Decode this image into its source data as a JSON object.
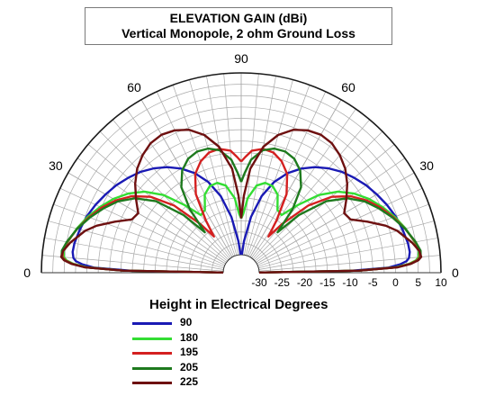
{
  "chart_data": {
    "type": "polar-elevation",
    "title": "ELEVATION GAIN (dBi)",
    "subtitle": "Vertical Monopole, 2 ohm Ground Loss",
    "angle_labels": [
      "0",
      "30",
      "60",
      "90",
      "60",
      "30",
      "0"
    ],
    "radial_tick_labels": [
      "-30",
      "-25",
      "-20",
      "-15",
      "-10",
      "-5",
      "0",
      "5",
      "10"
    ],
    "radial_range_dbi": [
      -30,
      10
    ],
    "legend_title": "Height in Electrical Degrees",
    "series": [
      {
        "name": "90",
        "color": "#1a1ab4",
        "points": [
          [
            0.7,
            -30
          ],
          [
            1,
            -10
          ],
          [
            2,
            -1.5
          ],
          [
            3,
            1
          ],
          [
            4,
            2.5
          ],
          [
            5,
            3.1
          ],
          [
            7,
            3.4
          ],
          [
            10,
            3.3
          ],
          [
            15,
            2.8
          ],
          [
            20,
            2.2
          ],
          [
            25,
            1.4
          ],
          [
            30,
            0.5
          ],
          [
            35,
            -0.4
          ],
          [
            40,
            -1.5
          ],
          [
            45,
            -2.6
          ],
          [
            50,
            -4
          ],
          [
            55,
            -5.6
          ],
          [
            60,
            -7.5
          ],
          [
            65,
            -9.8
          ],
          [
            70,
            -12.7
          ],
          [
            75,
            -16.5
          ],
          [
            80,
            -21.5
          ],
          [
            85,
            -27
          ],
          [
            88,
            -30
          ]
        ]
      },
      {
        "name": "180",
        "color": "#33dd33",
        "points": [
          [
            0.7,
            -30
          ],
          [
            1,
            -8
          ],
          [
            2,
            0
          ],
          [
            3,
            3
          ],
          [
            4,
            4.5
          ],
          [
            5,
            5.2
          ],
          [
            7,
            5.4
          ],
          [
            10,
            4.8
          ],
          [
            15,
            3.5
          ],
          [
            20,
            2
          ],
          [
            25,
            0.3
          ],
          [
            30,
            -1.5
          ],
          [
            35,
            -3.6
          ],
          [
            40,
            -6.2
          ],
          [
            45,
            -9.8
          ],
          [
            50,
            -14.5
          ],
          [
            55,
            -18.5
          ],
          [
            60,
            -18
          ],
          [
            65,
            -15
          ],
          [
            70,
            -13.7
          ],
          [
            75,
            -13.5
          ],
          [
            80,
            -14.5
          ],
          [
            85,
            -17.5
          ],
          [
            88,
            -21
          ],
          [
            90,
            -22
          ]
        ]
      },
      {
        "name": "195",
        "color": "#d42020",
        "points": [
          [
            0.7,
            -30
          ],
          [
            1,
            -8
          ],
          [
            2,
            0.3
          ],
          [
            3,
            3.2
          ],
          [
            4,
            4.8
          ],
          [
            5,
            5.5
          ],
          [
            7,
            5.6
          ],
          [
            10,
            4.9
          ],
          [
            15,
            3.4
          ],
          [
            20,
            1.7
          ],
          [
            25,
            -0.1
          ],
          [
            30,
            -2.1
          ],
          [
            35,
            -4.6
          ],
          [
            40,
            -8
          ],
          [
            45,
            -13
          ],
          [
            50,
            -20
          ],
          [
            53,
            -24
          ],
          [
            56,
            -20
          ],
          [
            60,
            -14
          ],
          [
            65,
            -10
          ],
          [
            70,
            -7.9
          ],
          [
            75,
            -6.6
          ],
          [
            80,
            -6.3
          ],
          [
            85,
            -7
          ],
          [
            88,
            -8.5
          ],
          [
            90,
            -9.5
          ]
        ]
      },
      {
        "name": "205",
        "color": "#1e7a1e",
        "points": [
          [
            0.7,
            -30
          ],
          [
            1,
            -8
          ],
          [
            2,
            0.5
          ],
          [
            3,
            3.4
          ],
          [
            4,
            5
          ],
          [
            5,
            5.7
          ],
          [
            7,
            5.8
          ],
          [
            10,
            5
          ],
          [
            15,
            3.4
          ],
          [
            20,
            1.5
          ],
          [
            25,
            -0.5
          ],
          [
            30,
            -2.6
          ],
          [
            35,
            -5.4
          ],
          [
            40,
            -9.5
          ],
          [
            45,
            -16
          ],
          [
            48,
            -22
          ],
          [
            51,
            -16
          ],
          [
            55,
            -11
          ],
          [
            60,
            -8
          ],
          [
            65,
            -6.3
          ],
          [
            70,
            -5.6
          ],
          [
            75,
            -5.7
          ],
          [
            80,
            -6.6
          ],
          [
            85,
            -9
          ],
          [
            88,
            -12
          ],
          [
            90,
            -14
          ]
        ]
      },
      {
        "name": "225",
        "color": "#6e1010",
        "points": [
          [
            0.7,
            -30
          ],
          [
            1,
            -8
          ],
          [
            2,
            0.6
          ],
          [
            3,
            3.5
          ],
          [
            4,
            5.1
          ],
          [
            5,
            5.8
          ],
          [
            7,
            5.5
          ],
          [
            10,
            4.2
          ],
          [
            15,
            1.6
          ],
          [
            18,
            -0.5
          ],
          [
            22,
            -4
          ],
          [
            26,
            -7.2
          ],
          [
            30,
            -7.8
          ],
          [
            35,
            -5.7
          ],
          [
            40,
            -3.5
          ],
          [
            45,
            -1.6
          ],
          [
            50,
            -0.2
          ],
          [
            55,
            0.8
          ],
          [
            60,
            1.1
          ],
          [
            65,
            0.6
          ],
          [
            70,
            -0.5
          ],
          [
            75,
            -2.6
          ],
          [
            80,
            -5.8
          ],
          [
            85,
            -11
          ],
          [
            88,
            -17
          ],
          [
            90,
            -22
          ]
        ]
      }
    ]
  }
}
